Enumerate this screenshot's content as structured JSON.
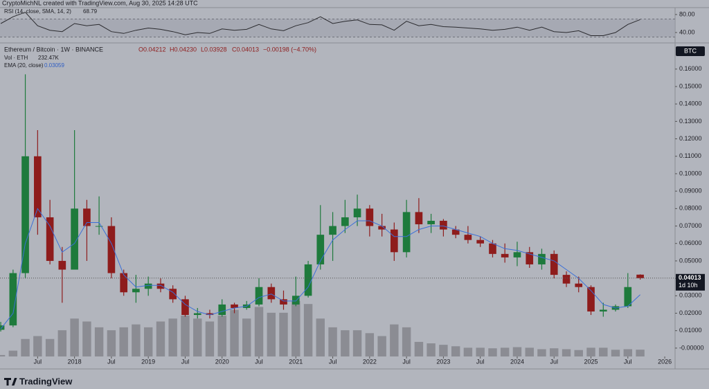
{
  "header": {
    "watermark": "CryptoMichNL created with TradingView.com, Aug 30, 2025 14:28 UTC"
  },
  "footer": {
    "brand": "TradingView"
  },
  "chart_data": [
    {
      "type": "candlestick",
      "title": "Ethereum / Bitcoin · 1W · BINANCE",
      "currency": "BTC",
      "ohlc_legend": [
        "O0.04212",
        "H0.04230",
        "L0.03928",
        "C0.04013",
        "−0.00198 (−4.70%)"
      ],
      "up_color": "#1e7a3c",
      "down_color": "#8e1c1c",
      "x": [
        2017.0,
        2017.167,
        2017.333,
        2017.5,
        2017.667,
        2017.833,
        2018.0,
        2018.167,
        2018.333,
        2018.5,
        2018.667,
        2018.833,
        2019.0,
        2019.167,
        2019.333,
        2019.5,
        2019.667,
        2019.833,
        2020.0,
        2020.167,
        2020.333,
        2020.5,
        2020.667,
        2020.833,
        2021.0,
        2021.167,
        2021.333,
        2021.5,
        2021.667,
        2021.833,
        2022.0,
        2022.167,
        2022.333,
        2022.5,
        2022.667,
        2022.833,
        2023.0,
        2023.167,
        2023.333,
        2023.5,
        2023.667,
        2023.833,
        2024.0,
        2024.167,
        2024.333,
        2024.5,
        2024.667,
        2024.833,
        2025.0,
        2025.167,
        2025.333,
        2025.5,
        2025.667
      ],
      "open": [
        0.0105,
        0.013,
        0.043,
        0.11,
        0.075,
        0.05,
        0.045,
        0.08,
        0.07,
        0.07,
        0.043,
        0.032,
        0.034,
        0.037,
        0.034,
        0.028,
        0.019,
        0.02,
        0.019,
        0.025,
        0.023,
        0.025,
        0.035,
        0.028,
        0.025,
        0.03,
        0.048,
        0.065,
        0.07,
        0.075,
        0.08,
        0.07,
        0.068,
        0.055,
        0.078,
        0.071,
        0.073,
        0.068,
        0.065,
        0.062,
        0.06,
        0.054,
        0.052,
        0.055,
        0.048,
        0.054,
        0.042,
        0.037,
        0.035,
        0.021,
        0.022,
        0.024,
        0.04212
      ],
      "high": [
        0.015,
        0.045,
        0.157,
        0.125,
        0.085,
        0.058,
        0.125,
        0.085,
        0.087,
        0.075,
        0.045,
        0.042,
        0.041,
        0.04,
        0.036,
        0.03,
        0.023,
        0.022,
        0.028,
        0.026,
        0.027,
        0.04,
        0.037,
        0.033,
        0.041,
        0.05,
        0.082,
        0.078,
        0.085,
        0.088,
        0.082,
        0.077,
        0.072,
        0.085,
        0.086,
        0.077,
        0.074,
        0.07,
        0.07,
        0.064,
        0.062,
        0.06,
        0.061,
        0.058,
        0.057,
        0.056,
        0.044,
        0.041,
        0.036,
        0.026,
        0.025,
        0.043,
        0.0423
      ],
      "low": [
        0.0095,
        0.012,
        0.04,
        0.065,
        0.048,
        0.026,
        0.045,
        0.05,
        0.065,
        0.04,
        0.03,
        0.026,
        0.03,
        0.032,
        0.026,
        0.018,
        0.017,
        0.017,
        0.018,
        0.02,
        0.022,
        0.024,
        0.026,
        0.022,
        0.024,
        0.029,
        0.045,
        0.05,
        0.066,
        0.07,
        0.064,
        0.064,
        0.05,
        0.052,
        0.066,
        0.066,
        0.064,
        0.063,
        0.06,
        0.058,
        0.052,
        0.049,
        0.047,
        0.046,
        0.045,
        0.04,
        0.035,
        0.032,
        0.019,
        0.018,
        0.021,
        0.023,
        0.03928
      ],
      "close": [
        0.013,
        0.043,
        0.11,
        0.075,
        0.05,
        0.045,
        0.08,
        0.07,
        0.07,
        0.043,
        0.032,
        0.034,
        0.037,
        0.034,
        0.028,
        0.019,
        0.02,
        0.019,
        0.025,
        0.023,
        0.025,
        0.035,
        0.028,
        0.025,
        0.03,
        0.048,
        0.065,
        0.07,
        0.075,
        0.08,
        0.07,
        0.068,
        0.055,
        0.078,
        0.071,
        0.073,
        0.068,
        0.065,
        0.062,
        0.06,
        0.054,
        0.052,
        0.055,
        0.048,
        0.054,
        0.042,
        0.037,
        0.035,
        0.021,
        0.022,
        0.024,
        0.035,
        0.04013
      ],
      "series": [
        {
          "name": "EMA (20, close)",
          "value_label": "0.03059",
          "color": "#3b6fd8",
          "values": [
            0.011,
            0.02,
            0.06,
            0.08,
            0.07,
            0.055,
            0.06,
            0.072,
            0.072,
            0.06,
            0.042,
            0.035,
            0.036,
            0.036,
            0.032,
            0.025,
            0.021,
            0.019,
            0.021,
            0.023,
            0.024,
            0.029,
            0.031,
            0.027,
            0.027,
            0.035,
            0.05,
            0.062,
            0.068,
            0.073,
            0.073,
            0.07,
            0.064,
            0.064,
            0.068,
            0.07,
            0.07,
            0.068,
            0.066,
            0.064,
            0.06,
            0.057,
            0.056,
            0.054,
            0.052,
            0.05,
            0.045,
            0.04,
            0.033,
            0.025,
            0.023,
            0.024,
            0.03059
          ]
        }
      ],
      "volume": {
        "name": "Vol · ETH",
        "value_label": "232.47K",
        "color": "#7d7f86",
        "values": [
          50000,
          200000,
          600000,
          700000,
          600000,
          900000,
          1300000,
          1200000,
          1000000,
          900000,
          1000000,
          1100000,
          1000000,
          1200000,
          1300000,
          1400000,
          1300000,
          1200000,
          1400000,
          1600000,
          1300000,
          1700000,
          1500000,
          1500000,
          1900000,
          1800000,
          1300000,
          1000000,
          900000,
          900000,
          800000,
          700000,
          1100000,
          1000000,
          500000,
          450000,
          400000,
          350000,
          300000,
          300000,
          280000,
          300000,
          320000,
          300000,
          250000,
          280000,
          250000,
          220000,
          300000,
          300000,
          230000,
          250000,
          232470
        ]
      },
      "last_price": {
        "value": 0.04013,
        "countdown": "1d 10h"
      },
      "xlim": [
        2016.99,
        2026.14
      ],
      "ylim": [
        -0.0048,
        0.175
      ],
      "xticks": [
        {
          "value": 2017.5,
          "label": "Jul"
        },
        2018,
        {
          "value": 2018.5,
          "label": "Jul"
        },
        2019,
        {
          "value": 2019.5,
          "label": "Jul"
        },
        2020,
        {
          "value": 2020.5,
          "label": "Jul"
        },
        2021,
        {
          "value": 2021.5,
          "label": "Jul"
        },
        2022,
        {
          "value": 2022.5,
          "label": "Jul"
        },
        2023,
        {
          "value": 2023.5,
          "label": "Jul"
        },
        2024,
        {
          "value": 2024.5,
          "label": "Jul"
        },
        2025,
        {
          "value": 2025.5,
          "label": "Jul"
        },
        2026
      ],
      "yticks": [
        {
          "value": 0.16,
          "label": "0.16000"
        },
        {
          "value": 0.15,
          "label": "0.15000"
        },
        {
          "value": 0.14,
          "label": "0.14000"
        },
        {
          "value": 0.13,
          "label": "0.13000"
        },
        {
          "value": 0.12,
          "label": "0.12000"
        },
        {
          "value": 0.11,
          "label": "0.11000"
        },
        {
          "value": 0.1,
          "label": "0.10000"
        },
        {
          "value": 0.09,
          "label": "0.09000"
        },
        {
          "value": 0.08,
          "label": "0.08000"
        },
        {
          "value": 0.07,
          "label": "0.07000"
        },
        {
          "value": 0.06,
          "label": "0.06000"
        },
        {
          "value": 0.05,
          "label": "0.05000"
        },
        {
          "value": 0.04,
          "label": "0.04000"
        },
        {
          "value": 0.03,
          "label": "0.03000"
        },
        {
          "value": 0.02,
          "label": "0.02000"
        },
        {
          "value": 0.01,
          "label": "0.01000"
        },
        {
          "value": 0,
          "label": "-0.00000"
        }
      ]
    },
    {
      "type": "line",
      "title": "RSI (14, close, SMA, 14, 2)",
      "x": [
        2017.0,
        2017.167,
        2017.333,
        2017.5,
        2017.667,
        2017.833,
        2018.0,
        2018.167,
        2018.333,
        2018.5,
        2018.667,
        2018.833,
        2019.0,
        2019.167,
        2019.333,
        2019.5,
        2019.667,
        2019.833,
        2020.0,
        2020.167,
        2020.333,
        2020.5,
        2020.667,
        2020.833,
        2021.0,
        2021.167,
        2021.333,
        2021.5,
        2021.667,
        2021.833,
        2022.0,
        2022.167,
        2022.333,
        2022.5,
        2022.667,
        2022.833,
        2023.0,
        2023.167,
        2023.333,
        2023.5,
        2023.667,
        2023.833,
        2024.0,
        2024.167,
        2024.333,
        2024.5,
        2024.667,
        2024.833,
        2025.0,
        2025.167,
        2025.333,
        2025.5,
        2025.667
      ],
      "series": [
        {
          "name": "RSI",
          "color": "#2a2a2e",
          "values": [
            60,
            75,
            85,
            55,
            45,
            42,
            60,
            55,
            58,
            42,
            38,
            45,
            50,
            47,
            42,
            35,
            40,
            38,
            48,
            45,
            47,
            58,
            48,
            44,
            55,
            62,
            75,
            60,
            65,
            68,
            58,
            57,
            45,
            65,
            55,
            58,
            53,
            52,
            50,
            48,
            45,
            47,
            52,
            45,
            52,
            42,
            40,
            44,
            33,
            33,
            40,
            58,
            68.79
          ]
        }
      ],
      "bands": [
        30,
        70
      ],
      "xlim": [
        2016.99,
        2026.14
      ],
      "ylim": [
        16.9,
        93.8
      ],
      "yticks": [
        {
          "value": 80,
          "label": "80.00"
        },
        {
          "value": 40,
          "label": "40.00"
        }
      ]
    }
  ]
}
